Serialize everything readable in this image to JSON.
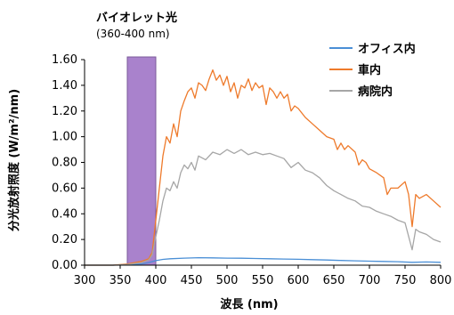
{
  "chart_data": {
    "type": "line",
    "xlabel": "波長 (nm)",
    "ylabel": "分光放射照度 (W/m²/nm)",
    "xlim": [
      300,
      800
    ],
    "ylim": [
      0,
      1.6
    ],
    "x_ticks": [
      "300",
      "350",
      "400",
      "450",
      "500",
      "550",
      "600",
      "650",
      "700",
      "750",
      "800"
    ],
    "y_ticks": [
      "0.00",
      "0.20",
      "0.40",
      "0.60",
      "0.80",
      "1.00",
      "1.20",
      "1.40",
      "1.60"
    ],
    "grid": false,
    "legend_position": "top-right",
    "band": {
      "label": "バイオレット光",
      "sublabel": "(360-400 nm)",
      "range": [
        360,
        400
      ],
      "color": "#a982cc"
    },
    "series": [
      {
        "name": "オフィス内",
        "color": "#4a8fd6",
        "x": [
          300,
          340,
          360,
          380,
          390,
          400,
          410,
          420,
          440,
          460,
          480,
          500,
          520,
          540,
          560,
          580,
          600,
          620,
          640,
          660,
          680,
          700,
          720,
          740,
          760,
          780,
          800
        ],
        "y": [
          0,
          0,
          0.005,
          0.01,
          0.02,
          0.035,
          0.045,
          0.05,
          0.055,
          0.058,
          0.057,
          0.055,
          0.054,
          0.052,
          0.05,
          0.048,
          0.046,
          0.043,
          0.04,
          0.037,
          0.034,
          0.031,
          0.029,
          0.027,
          0.022,
          0.025,
          0.022
        ]
      },
      {
        "name": "車内",
        "color": "#ee7a2b",
        "x": [
          300,
          340,
          360,
          380,
          390,
          395,
          400,
          405,
          410,
          415,
          420,
          425,
          430,
          435,
          440,
          445,
          450,
          455,
          460,
          465,
          470,
          475,
          480,
          485,
          490,
          495,
          500,
          505,
          510,
          515,
          520,
          525,
          530,
          535,
          540,
          545,
          550,
          555,
          560,
          565,
          570,
          575,
          580,
          585,
          590,
          595,
          600,
          610,
          620,
          630,
          640,
          650,
          655,
          660,
          665,
          670,
          680,
          685,
          690,
          695,
          700,
          710,
          720,
          725,
          730,
          740,
          750,
          755,
          760,
          765,
          770,
          780,
          790,
          800
        ],
        "y": [
          0,
          0,
          0.01,
          0.03,
          0.05,
          0.1,
          0.35,
          0.6,
          0.85,
          1.0,
          0.95,
          1.1,
          1.0,
          1.2,
          1.28,
          1.35,
          1.38,
          1.3,
          1.42,
          1.4,
          1.36,
          1.45,
          1.52,
          1.44,
          1.48,
          1.4,
          1.47,
          1.35,
          1.42,
          1.3,
          1.4,
          1.38,
          1.45,
          1.36,
          1.42,
          1.38,
          1.4,
          1.25,
          1.38,
          1.35,
          1.3,
          1.35,
          1.3,
          1.33,
          1.2,
          1.24,
          1.22,
          1.15,
          1.1,
          1.05,
          1.0,
          0.98,
          0.9,
          0.95,
          0.9,
          0.93,
          0.88,
          0.78,
          0.82,
          0.8,
          0.75,
          0.72,
          0.68,
          0.55,
          0.6,
          0.6,
          0.65,
          0.55,
          0.3,
          0.55,
          0.52,
          0.55,
          0.5,
          0.45
        ]
      },
      {
        "name": "病院内",
        "color": "#a6a6a6",
        "x": [
          300,
          340,
          360,
          380,
          390,
          395,
          400,
          405,
          410,
          415,
          420,
          425,
          430,
          435,
          440,
          445,
          450,
          455,
          460,
          470,
          480,
          490,
          500,
          510,
          520,
          530,
          540,
          550,
          560,
          570,
          580,
          590,
          600,
          610,
          620,
          630,
          640,
          650,
          660,
          670,
          680,
          690,
          700,
          710,
          720,
          730,
          740,
          750,
          760,
          765,
          770,
          780,
          790,
          800
        ],
        "y": [
          0,
          0,
          0.005,
          0.02,
          0.04,
          0.08,
          0.22,
          0.35,
          0.5,
          0.6,
          0.58,
          0.65,
          0.6,
          0.72,
          0.78,
          0.75,
          0.8,
          0.74,
          0.85,
          0.82,
          0.88,
          0.86,
          0.9,
          0.87,
          0.9,
          0.86,
          0.88,
          0.86,
          0.87,
          0.85,
          0.83,
          0.76,
          0.8,
          0.74,
          0.72,
          0.68,
          0.62,
          0.58,
          0.55,
          0.52,
          0.5,
          0.46,
          0.45,
          0.42,
          0.4,
          0.38,
          0.35,
          0.33,
          0.12,
          0.28,
          0.26,
          0.24,
          0.2,
          0.18
        ]
      }
    ]
  }
}
